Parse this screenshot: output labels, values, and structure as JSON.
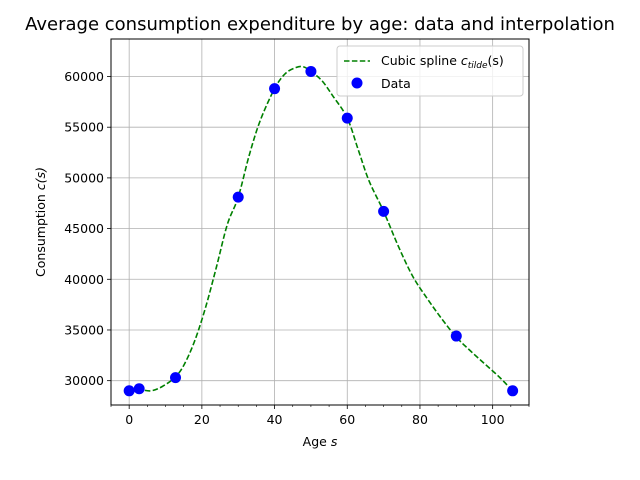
{
  "chart_data": {
    "type": "line",
    "title": "Average consumption expenditure by age: data and interpolation",
    "xlabel_main": "Age ",
    "xlabel_var": "s",
    "ylabel_main": "Consumption ",
    "ylabel_var": "c(s)",
    "xlim": [
      -5,
      110
    ],
    "ylim": [
      27600,
      63700
    ],
    "x_ticks": [
      0,
      20,
      40,
      60,
      80,
      100
    ],
    "y_ticks": [
      30000,
      35000,
      40000,
      45000,
      50000,
      55000,
      60000
    ],
    "x_tick_labels": [
      "0",
      "20",
      "40",
      "60",
      "80",
      "100"
    ],
    "y_tick_labels": [
      "30000",
      "35000",
      "40000",
      "45000",
      "50000",
      "55000",
      "60000"
    ],
    "grid": true,
    "legend_position": "top-right",
    "series": [
      {
        "name_main": "Cubic spline ",
        "name_var": "c",
        "name_sub": "tilde",
        "name_arg": "(s)",
        "kind": "line",
        "style": "dashed",
        "color": "#008000",
        "x": [
          0,
          3,
          6,
          9,
          12.5,
          15,
          18,
          21,
          24,
          27,
          30,
          33,
          36,
          40,
          43,
          46,
          48,
          50,
          53,
          56,
          60,
          63,
          66,
          70,
          74,
          78,
          82,
          86,
          90,
          94,
          98,
          102,
          105.5
        ],
        "y": [
          29000,
          29100,
          29000,
          29400,
          30300,
          31500,
          33900,
          37200,
          41200,
          45400,
          48100,
          52200,
          55600,
          58800,
          60300,
          60900,
          60950,
          60500,
          59600,
          58100,
          55900,
          52800,
          49700,
          46700,
          43300,
          40300,
          38100,
          36100,
          34300,
          32900,
          31600,
          30300,
          29000
        ]
      },
      {
        "name": "Data",
        "kind": "scatter",
        "color": "#0000ff",
        "x": [
          0,
          2.75,
          12.75,
          30,
          40,
          50,
          60,
          70,
          90,
          105.5
        ],
        "y": [
          29000,
          29200,
          30300,
          48100,
          58800,
          60500,
          55900,
          46700,
          34400,
          29000
        ]
      }
    ]
  }
}
